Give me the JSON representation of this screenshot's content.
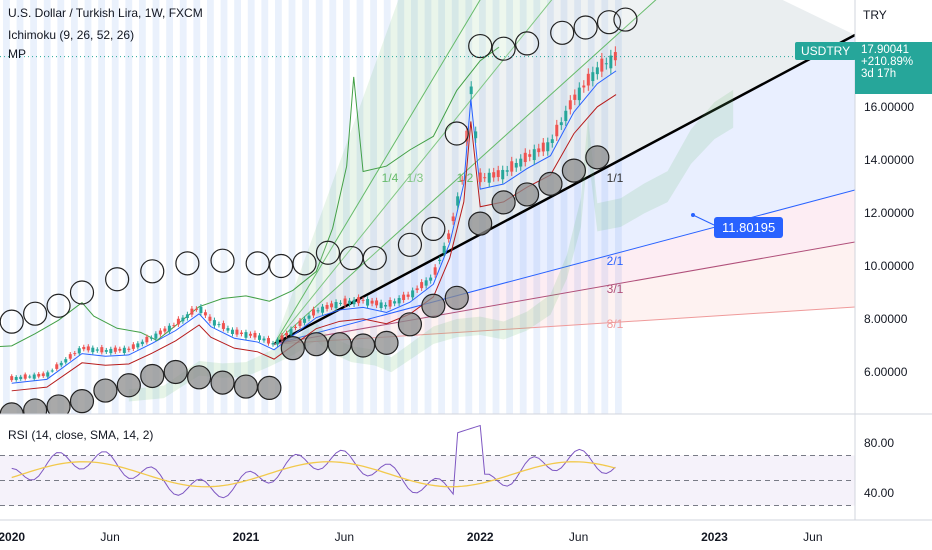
{
  "header": {
    "symbol_line": "U.S. Dollar / Turkish Lira, 1W, FXCM",
    "ichimoku": "Ichimoku (9, 26, 52, 26)",
    "mp": "MP"
  },
  "rsi_legend": "RSI (14, close, SMA, 14, 2)",
  "currency_label": "TRY",
  "ticker_tag": "USDTRY",
  "last_price": {
    "value": "17.90041",
    "change": "+210.89%",
    "countdown": "3d 17h"
  },
  "measure_label": "11.80195",
  "fan_labels": [
    "1/4",
    "1/3",
    "1/2",
    "1/1",
    "2/1",
    "3/1",
    "8/1"
  ],
  "colors": {
    "up": "#26a69a",
    "down": "#ef5350",
    "trendline": "#000000",
    "rsi": "#7e57c2",
    "rsi_ma": "#f2c94c",
    "ticker_bg": "#26a69a",
    "measure_bg": "#2962ff"
  },
  "chart_data": [
    {
      "type": "candlestick",
      "title": "U.S. Dollar / Turkish Lira, 1W, FXCM",
      "x_tick_labels": [
        "2020",
        "Jun",
        "2021",
        "Jun",
        "2022",
        "Jun",
        "2023",
        "Jun"
      ],
      "y_tick_labels": [
        "6.00000",
        "8.00000",
        "10.00000",
        "12.00000",
        "14.00000",
        "16.00000"
      ],
      "ylim": [
        4.5,
        18.8
      ],
      "y_unit": "TRY",
      "last_value": 17.90041,
      "price_path": [
        [
          2020.0,
          5.75
        ],
        [
          2020.15,
          5.9
        ],
        [
          2020.3,
          6.9
        ],
        [
          2020.4,
          6.8
        ],
        [
          2020.5,
          6.85
        ],
        [
          2020.6,
          7.3
        ],
        [
          2020.7,
          7.8
        ],
        [
          2020.8,
          8.45
        ],
        [
          2020.85,
          7.95
        ],
        [
          2020.95,
          7.5
        ],
        [
          2021.05,
          7.35
        ],
        [
          2021.12,
          7.05
        ],
        [
          2021.2,
          7.6
        ],
        [
          2021.3,
          8.3
        ],
        [
          2021.4,
          8.6
        ],
        [
          2021.5,
          8.7
        ],
        [
          2021.6,
          8.5
        ],
        [
          2021.7,
          8.9
        ],
        [
          2021.8,
          9.6
        ],
        [
          2021.87,
          11.2
        ],
        [
          2021.93,
          13.5
        ],
        [
          2021.96,
          16.8
        ],
        [
          2022.0,
          13.3
        ],
        [
          2022.1,
          13.5
        ],
        [
          2022.2,
          14.1
        ],
        [
          2022.3,
          14.6
        ],
        [
          2022.4,
          16.3
        ],
        [
          2022.5,
          17.4
        ],
        [
          2022.58,
          17.9
        ]
      ],
      "mp_points": [
        [
          2020.0,
          7.9
        ],
        [
          2020.1,
          8.2
        ],
        [
          2020.2,
          8.5
        ],
        [
          2020.3,
          9.0
        ],
        [
          2020.45,
          9.5
        ],
        [
          2020.6,
          9.8
        ],
        [
          2020.75,
          10.1
        ],
        [
          2020.9,
          10.2
        ],
        [
          2021.05,
          10.1
        ],
        [
          2021.15,
          10.0
        ],
        [
          2021.25,
          10.1
        ],
        [
          2021.35,
          10.5
        ],
        [
          2021.45,
          10.3
        ],
        [
          2021.55,
          10.3
        ],
        [
          2021.7,
          10.8
        ],
        [
          2021.8,
          11.4
        ],
        [
          2021.9,
          15.0
        ],
        [
          2022.0,
          18.3
        ],
        [
          2022.1,
          18.2
        ],
        [
          2022.2,
          18.4
        ],
        [
          2022.35,
          18.8
        ],
        [
          2022.45,
          19.0
        ],
        [
          2022.55,
          19.2
        ],
        [
          2022.62,
          19.3
        ],
        [
          2020.0,
          4.4
        ],
        [
          2020.1,
          4.55
        ],
        [
          2020.2,
          4.7
        ],
        [
          2020.3,
          4.9
        ],
        [
          2020.4,
          5.3
        ],
        [
          2020.5,
          5.5
        ],
        [
          2020.6,
          5.85
        ],
        [
          2020.7,
          6.0
        ],
        [
          2020.8,
          5.8
        ],
        [
          2020.9,
          5.6
        ],
        [
          2021.0,
          5.45
        ],
        [
          2021.1,
          5.4
        ],
        [
          2021.2,
          6.9
        ],
        [
          2021.3,
          7.05
        ],
        [
          2021.4,
          7.05
        ],
        [
          2021.5,
          7.0
        ],
        [
          2021.6,
          7.1
        ],
        [
          2021.7,
          7.8
        ],
        [
          2021.8,
          8.5
        ],
        [
          2021.9,
          8.8
        ],
        [
          2022.0,
          11.6
        ],
        [
          2022.1,
          12.4
        ],
        [
          2022.2,
          12.7
        ],
        [
          2022.3,
          13.1
        ],
        [
          2022.4,
          13.6
        ],
        [
          2022.5,
          14.1
        ]
      ],
      "rsi": {
        "label": "RSI (14, close, SMA, 14, 2)",
        "y_tick_labels": [
          "80.00",
          "40.00"
        ],
        "ylim": [
          20,
          100
        ],
        "bands": [
          30,
          50,
          70
        ]
      }
    }
  ]
}
